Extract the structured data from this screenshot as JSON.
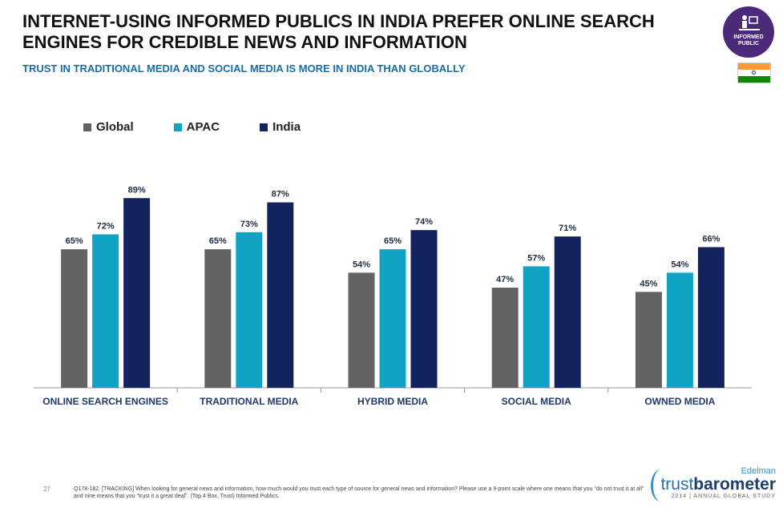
{
  "header": {
    "title": "INTERNET-USING INFORMED PUBLICS IN INDIA PREFER ONLINE SEARCH ENGINES FOR CREDIBLE NEWS AND INFORMATION",
    "subtitle": "TRUST IN TRADITIONAL MEDIA AND SOCIAL MEDIA IS MORE IN INDIA THAN GLOBALLY",
    "badge_label": "INFORMED PUBLIC",
    "flag_colors": [
      "#ff9933",
      "#ffffff",
      "#138808"
    ]
  },
  "chart_data": {
    "type": "bar",
    "categories": [
      "ONLINE SEARCH ENGINES",
      "TRADITIONAL MEDIA",
      "HYBRID MEDIA",
      "SOCIAL MEDIA",
      "OWNED MEDIA"
    ],
    "series": [
      {
        "name": "Global",
        "values": [
          65,
          65,
          54,
          47,
          45
        ],
        "color": "#636363"
      },
      {
        "name": "APAC",
        "values": [
          72,
          73,
          65,
          57,
          54
        ],
        "color": "#12a3c4"
      },
      {
        "name": "India",
        "values": [
          89,
          87,
          74,
          71,
          66
        ],
        "color": "#12235e"
      }
    ],
    "value_suffix": "%",
    "ylim": [
      0,
      100
    ],
    "legend_position": "top-left",
    "grid": false
  },
  "footer": {
    "page_number": "27",
    "footnote": "Q178-182. [TRACKING] When looking for general news and information, how much would you trust each type of source for general news and information? Please use a 9-point scale where one means that you \"do not trust it at all\" and nine means that you \"trust it a great deal\". (Top 4 Box, Trust) Informed Publics.",
    "brand_top": "Edelman",
    "brand_main_a": "trust",
    "brand_main_b": "barometer",
    "brand_sub": "2014 | ANNUAL GLOBAL STUDY"
  }
}
